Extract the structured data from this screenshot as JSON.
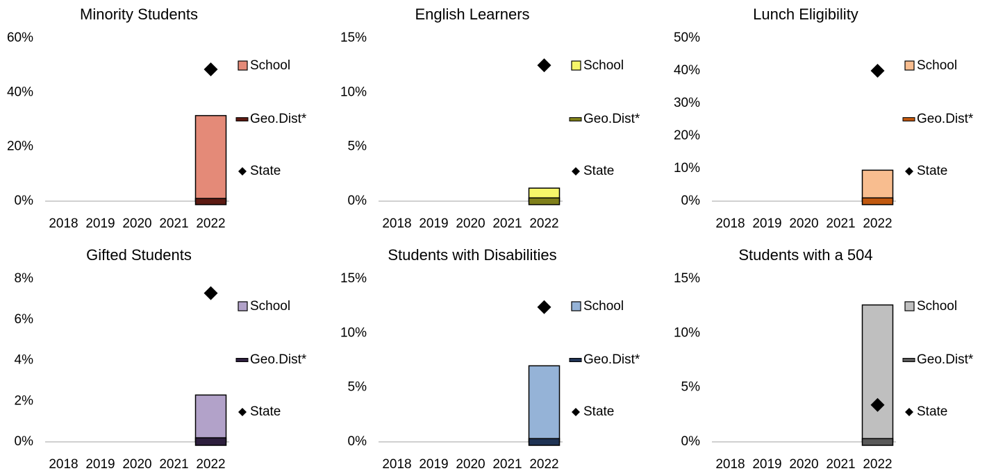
{
  "chart_data": [
    {
      "type": "bar",
      "title": "Minority Students",
      "categories": [
        "2018",
        "2019",
        "2020",
        "2021",
        "2022"
      ],
      "series": [
        {
          "name": "School",
          "color": "#e48a78",
          "values": [
            null,
            null,
            null,
            null,
            31.5
          ]
        },
        {
          "name": "Geo.Dist*",
          "color": "#5c1a12",
          "values": [
            null,
            null,
            null,
            null,
            1
          ]
        },
        {
          "name": "State",
          "color": "#000000",
          "values": [
            null,
            null,
            null,
            null,
            48.5
          ]
        }
      ],
      "ylim": [
        0,
        60
      ],
      "yticks": [
        {
          "value": 0,
          "label": "0%"
        },
        {
          "value": 20,
          "label": "20%"
        },
        {
          "value": 40,
          "label": "40%"
        },
        {
          "value": 60,
          "label": "60%"
        }
      ]
    },
    {
      "type": "bar",
      "title": "English Learners",
      "categories": [
        "2018",
        "2019",
        "2020",
        "2021",
        "2022"
      ],
      "series": [
        {
          "name": "School",
          "color": "#f6f66a",
          "values": [
            null,
            null,
            null,
            null,
            1.2
          ]
        },
        {
          "name": "Geo.Dist*",
          "color": "#7f7f1a",
          "values": [
            null,
            null,
            null,
            null,
            0.3
          ]
        },
        {
          "name": "State",
          "color": "#000000",
          "values": [
            null,
            null,
            null,
            null,
            12.5
          ]
        }
      ],
      "ylim": [
        0,
        15
      ],
      "yticks": [
        {
          "value": 0,
          "label": "0%"
        },
        {
          "value": 5,
          "label": "5%"
        },
        {
          "value": 10,
          "label": "10%"
        },
        {
          "value": 15,
          "label": "15%"
        }
      ]
    },
    {
      "type": "bar",
      "title": "Lunch Eligibility",
      "categories": [
        "2018",
        "2019",
        "2020",
        "2021",
        "2022"
      ],
      "series": [
        {
          "name": "School",
          "color": "#f8bd8f",
          "values": [
            null,
            null,
            null,
            null,
            9.5
          ]
        },
        {
          "name": "Geo.Dist*",
          "color": "#c0580f",
          "values": [
            null,
            null,
            null,
            null,
            1
          ]
        },
        {
          "name": "State",
          "color": "#000000",
          "values": [
            null,
            null,
            null,
            null,
            40
          ]
        }
      ],
      "ylim": [
        0,
        50
      ],
      "yticks": [
        {
          "value": 0,
          "label": "0%"
        },
        {
          "value": 10,
          "label": "10%"
        },
        {
          "value": 20,
          "label": "20%"
        },
        {
          "value": 30,
          "label": "30%"
        },
        {
          "value": 40,
          "label": "40%"
        },
        {
          "value": 50,
          "label": "50%"
        }
      ]
    },
    {
      "type": "bar",
      "title": "Gifted Students",
      "categories": [
        "2018",
        "2019",
        "2020",
        "2021",
        "2022"
      ],
      "series": [
        {
          "name": "School",
          "color": "#b2a2c9",
          "values": [
            null,
            null,
            null,
            null,
            2.3
          ]
        },
        {
          "name": "Geo.Dist*",
          "color": "#2d1f3d",
          "values": [
            null,
            null,
            null,
            null,
            0.2
          ]
        },
        {
          "name": "State",
          "color": "#000000",
          "values": [
            null,
            null,
            null,
            null,
            7.3
          ]
        }
      ],
      "ylim": [
        0,
        8
      ],
      "yticks": [
        {
          "value": 0,
          "label": "0%"
        },
        {
          "value": 2,
          "label": "2%"
        },
        {
          "value": 4,
          "label": "4%"
        },
        {
          "value": 6,
          "label": "6%"
        },
        {
          "value": 8,
          "label": "8%"
        }
      ]
    },
    {
      "type": "bar",
      "title": "Students with Disabilities",
      "categories": [
        "2018",
        "2019",
        "2020",
        "2021",
        "2022"
      ],
      "series": [
        {
          "name": "School",
          "color": "#95b3d7",
          "values": [
            null,
            null,
            null,
            null,
            7
          ]
        },
        {
          "name": "Geo.Dist*",
          "color": "#1f3354",
          "values": [
            null,
            null,
            null,
            null,
            0.3
          ]
        },
        {
          "name": "State",
          "color": "#000000",
          "values": [
            null,
            null,
            null,
            null,
            12.4
          ]
        }
      ],
      "ylim": [
        0,
        15
      ],
      "yticks": [
        {
          "value": 0,
          "label": "0%"
        },
        {
          "value": 5,
          "label": "5%"
        },
        {
          "value": 10,
          "label": "10%"
        },
        {
          "value": 15,
          "label": "15%"
        }
      ]
    },
    {
      "type": "bar",
      "title": "Students with a 504",
      "categories": [
        "2018",
        "2019",
        "2020",
        "2021",
        "2022"
      ],
      "series": [
        {
          "name": "School",
          "color": "#bfbfbf",
          "values": [
            null,
            null,
            null,
            null,
            12.6
          ]
        },
        {
          "name": "Geo.Dist*",
          "color": "#595959",
          "values": [
            null,
            null,
            null,
            null,
            0.3
          ]
        },
        {
          "name": "State",
          "color": "#000000",
          "values": [
            null,
            null,
            null,
            null,
            3.4
          ]
        }
      ],
      "ylim": [
        0,
        15
      ],
      "yticks": [
        {
          "value": 0,
          "label": "0%"
        },
        {
          "value": 5,
          "label": "5%"
        },
        {
          "value": 10,
          "label": "10%"
        },
        {
          "value": 15,
          "label": "15%"
        }
      ]
    }
  ]
}
